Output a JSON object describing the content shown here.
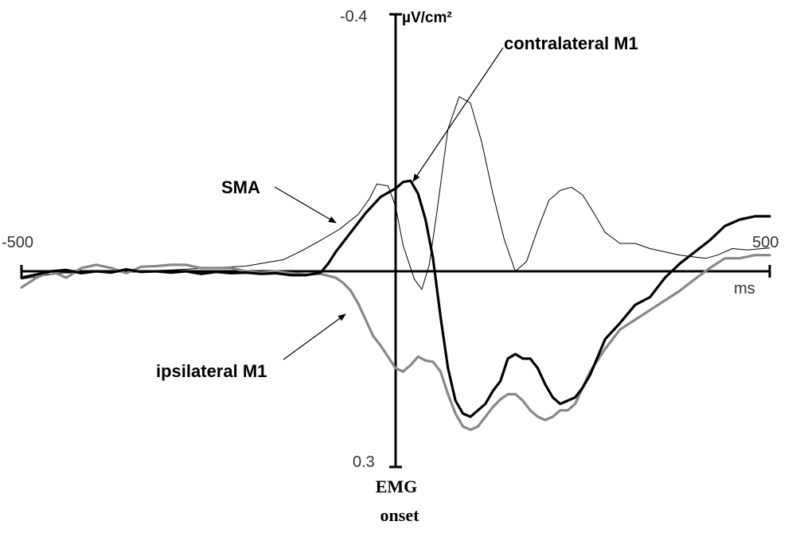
{
  "chart_data": {
    "type": "line",
    "y_inverted": true,
    "xlim": [
      -500,
      500
    ],
    "ylim": [
      -0.4,
      0.3
    ],
    "x_unit": "ms",
    "y_unit": "µV/cm²",
    "tick_labels": {
      "x_min": "-500",
      "x_max": "500",
      "y_top": "-0.4",
      "y_bottom": "0.3"
    },
    "onset_label": [
      "EMG",
      "onset"
    ],
    "series": [
      {
        "key": "sma",
        "name": "SMA",
        "color": "#000000",
        "width": 1,
        "x": [
          -500,
          -450,
          -400,
          -350,
          -300,
          -250,
          -200,
          -150,
          -125,
          -100,
          -75,
          -50,
          -35,
          -25,
          -10,
          0,
          10,
          25,
          35,
          45,
          55,
          70,
          85,
          100,
          115,
          130,
          145,
          160,
          175,
          190,
          205,
          220,
          235,
          250,
          265,
          280,
          300,
          320,
          340,
          360,
          380,
          400,
          415,
          430,
          450,
          470,
          490,
          500
        ],
        "y": [
          0.012,
          0.003,
          0.001,
          0.0,
          -0.002,
          -0.005,
          -0.008,
          -0.018,
          -0.032,
          -0.048,
          -0.065,
          -0.088,
          -0.112,
          -0.135,
          -0.132,
          -0.1,
          -0.04,
          0.012,
          0.028,
          -0.01,
          -0.09,
          -0.22,
          -0.27,
          -0.26,
          -0.2,
          -0.12,
          -0.05,
          0.0,
          -0.015,
          -0.065,
          -0.11,
          -0.125,
          -0.13,
          -0.118,
          -0.09,
          -0.06,
          -0.043,
          -0.043,
          -0.035,
          -0.03,
          -0.025,
          -0.022,
          -0.02,
          -0.025,
          -0.035,
          -0.033,
          -0.035,
          -0.036
        ]
      },
      {
        "key": "contra",
        "name": "contralateral M1",
        "color": "#000000",
        "width": 3.2,
        "x": [
          -500,
          -480,
          -460,
          -440,
          -420,
          -400,
          -380,
          -360,
          -340,
          -320,
          -300,
          -280,
          -260,
          -240,
          -220,
          -200,
          -180,
          -160,
          -140,
          -120,
          -100,
          -90,
          -80,
          -60,
          -40,
          -20,
          0,
          10,
          20,
          30,
          40,
          50,
          60,
          70,
          80,
          90,
          100,
          110,
          120,
          130,
          140,
          150,
          160,
          170,
          180,
          190,
          200,
          210,
          220,
          230,
          240,
          250,
          260,
          280,
          300,
          320,
          340,
          360,
          380,
          400,
          420,
          440,
          460,
          480,
          500
        ],
        "y": [
          0.01,
          0.005,
          0.0,
          -0.002,
          0.003,
          0.0,
          0.002,
          -0.003,
          0.001,
          0.0,
          0.002,
          0.0,
          0.004,
          0.001,
          0.003,
          0.002,
          0.004,
          0.003,
          0.006,
          0.006,
          0.002,
          -0.012,
          -0.03,
          -0.06,
          -0.09,
          -0.115,
          -0.128,
          -0.138,
          -0.14,
          -0.12,
          -0.08,
          -0.02,
          0.07,
          0.15,
          0.2,
          0.22,
          0.225,
          0.215,
          0.205,
          0.185,
          0.17,
          0.135,
          0.128,
          0.135,
          0.135,
          0.15,
          0.175,
          0.195,
          0.205,
          0.2,
          0.195,
          0.18,
          0.16,
          0.105,
          0.08,
          0.052,
          0.04,
          0.01,
          -0.012,
          -0.03,
          -0.048,
          -0.07,
          -0.08,
          -0.085,
          -0.085
        ]
      },
      {
        "key": "ipsi",
        "name": "ipsilateral M1",
        "color": "#888888",
        "width": 3.2,
        "x": [
          -500,
          -480,
          -460,
          -440,
          -420,
          -400,
          -380,
          -360,
          -340,
          -320,
          -300,
          -280,
          -260,
          -240,
          -220,
          -200,
          -180,
          -160,
          -140,
          -120,
          -100,
          -80,
          -70,
          -60,
          -50,
          -40,
          -30,
          -20,
          0,
          10,
          20,
          30,
          40,
          50,
          60,
          70,
          80,
          90,
          100,
          110,
          120,
          130,
          140,
          150,
          160,
          170,
          180,
          190,
          200,
          210,
          220,
          230,
          240,
          250,
          260,
          280,
          300,
          320,
          340,
          360,
          380,
          400,
          420,
          440,
          460,
          480,
          500
        ],
        "y": [
          0.025,
          0.01,
          0.0,
          0.01,
          -0.005,
          -0.01,
          -0.005,
          0.003,
          -0.007,
          -0.008,
          -0.01,
          -0.01,
          -0.005,
          -0.005,
          -0.005,
          0.0,
          0.002,
          0.0,
          0.003,
          0.005,
          0.004,
          0.01,
          0.018,
          0.03,
          0.05,
          0.075,
          0.1,
          0.115,
          0.15,
          0.155,
          0.145,
          0.132,
          0.138,
          0.14,
          0.155,
          0.19,
          0.22,
          0.24,
          0.245,
          0.24,
          0.225,
          0.21,
          0.198,
          0.19,
          0.19,
          0.2,
          0.215,
          0.225,
          0.23,
          0.225,
          0.215,
          0.215,
          0.205,
          0.18,
          0.155,
          0.12,
          0.09,
          0.075,
          0.06,
          0.045,
          0.03,
          0.012,
          -0.005,
          -0.02,
          -0.02,
          -0.025,
          -0.025
        ]
      }
    ],
    "annotations": [
      {
        "key": "sma",
        "text": "SMA"
      },
      {
        "key": "contra",
        "text": "contralateral M1"
      },
      {
        "key": "ipsi",
        "text": "ipsilateral M1"
      }
    ]
  }
}
